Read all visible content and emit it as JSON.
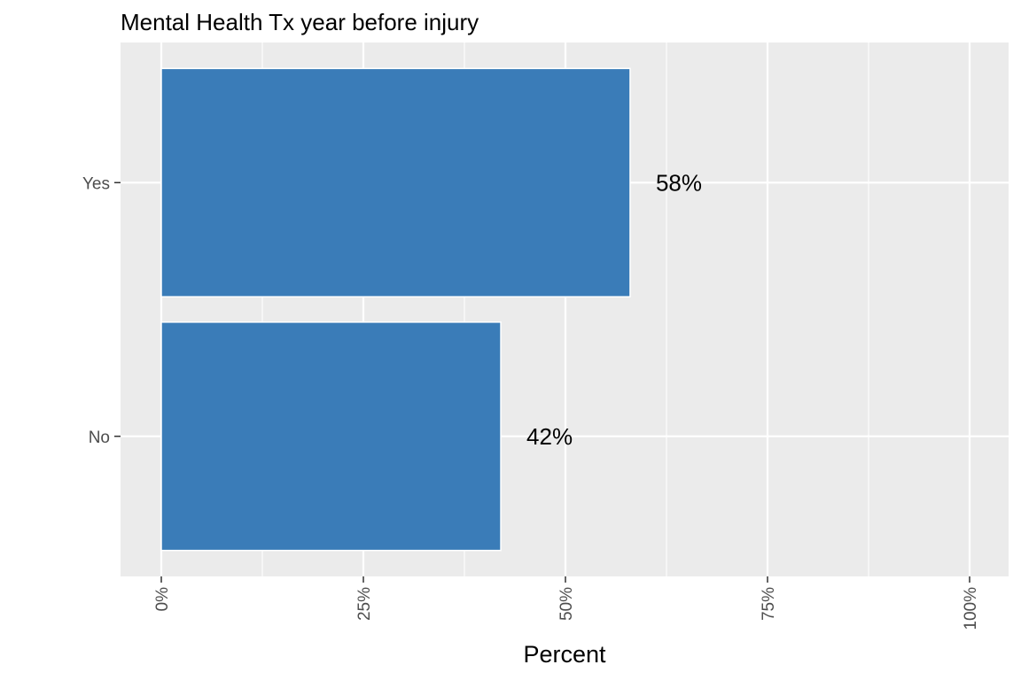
{
  "chart_data": {
    "type": "bar",
    "orientation": "horizontal",
    "title": "Mental Health Tx year before injury",
    "xlabel": "Percent",
    "ylabel": "",
    "categories": [
      "Yes",
      "No"
    ],
    "values": [
      58,
      42
    ],
    "data_labels": [
      "58%",
      "42%"
    ],
    "xlim": [
      0,
      100
    ],
    "x_ticks": [
      0,
      25,
      50,
      75,
      100
    ],
    "x_tick_labels": [
      "0%",
      "25%",
      "50%",
      "75%",
      "100%"
    ],
    "grid": true,
    "legend": "none",
    "colors": {
      "bar": "#3a7cb8",
      "panel_background": "#ebebeb",
      "grid": "#ffffff",
      "tick_text": "#4d4d4d"
    }
  }
}
